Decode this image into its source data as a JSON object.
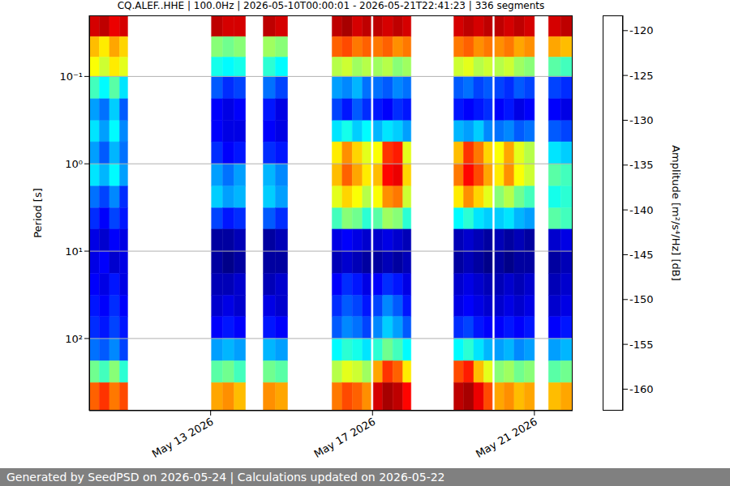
{
  "chart_data": {
    "type": "heatmap",
    "title": "CQ.ALEF..HHE | 100.0Hz | 2026-05-10T00:00:01 - 2026-05-21T22:41:23 | 336 segments",
    "y_label": "Period [s]",
    "xlim": [
      10.0,
      21.945
    ],
    "xticks": [
      {
        "value": 13,
        "label": "May 13 2026"
      },
      {
        "value": 17,
        "label": "May 17 2026"
      },
      {
        "value": 21,
        "label": "May 21 2026"
      }
    ],
    "ylim": [
      0.02,
      670
    ],
    "yticks": [
      {
        "value": 0.1,
        "label": "10⁻¹"
      },
      {
        "value": 1,
        "label": "10⁰"
      },
      {
        "value": 10,
        "label": "10¹"
      },
      {
        "value": 100,
        "label": "10²"
      }
    ],
    "log": "y",
    "grid": true,
    "tick_labels": true,
    "heatmap": {
      "x_edges": [
        10.0,
        10.25,
        10.5,
        10.75,
        10.95,
        13.02,
        13.3,
        13.58,
        13.86,
        14.3,
        14.6,
        14.9,
        16.0,
        16.25,
        16.5,
        16.75,
        16.96,
        17.02,
        17.25,
        17.5,
        17.75,
        17.95,
        19.01,
        19.25,
        19.5,
        19.75,
        19.96,
        20.02,
        20.25,
        20.5,
        20.75,
        21.0,
        21.35,
        21.65,
        21.945
      ],
      "y_edges": [
        0.02,
        0.035,
        0.06,
        0.1,
        0.18,
        0.32,
        0.56,
        1.0,
        1.8,
        3.2,
        5.6,
        10,
        18,
        32,
        56,
        100,
        180,
        320,
        670
      ],
      "values": [
        [
          -122,
          -121,
          -123,
          -122,
          null,
          -121,
          -122,
          -122,
          null,
          -121,
          -122,
          null,
          -121,
          -120,
          -122,
          -121,
          null,
          -121,
          -122,
          -121,
          -122,
          null,
          -122,
          -121,
          -122,
          -121,
          null,
          -121,
          -122,
          -121,
          -122,
          null,
          -122,
          -121
        ],
        [
          -132,
          -134,
          -131,
          -133,
          null,
          -140,
          -141,
          -140,
          null,
          -139,
          -140,
          null,
          -128,
          -127,
          -129,
          -128,
          null,
          -129,
          -128,
          -130,
          -129,
          null,
          -129,
          -128,
          -130,
          -129,
          null,
          -130,
          -129,
          -131,
          -130,
          null,
          -131,
          -132
        ],
        [
          -135,
          -137,
          -134,
          -136,
          null,
          -145,
          -146,
          -145,
          null,
          -144,
          -146,
          null,
          -138,
          -137,
          -139,
          -138,
          null,
          -139,
          -138,
          -140,
          -139,
          null,
          -137,
          -136,
          -138,
          -137,
          null,
          -138,
          -137,
          -139,
          -140,
          null,
          -142,
          -143
        ],
        [
          -143,
          -146,
          -142,
          -147,
          null,
          -153,
          -155,
          -154,
          null,
          -152,
          -154,
          null,
          -150,
          -151,
          -149,
          -152,
          null,
          -152,
          -153,
          -151,
          -152,
          null,
          -153,
          -152,
          -154,
          -153,
          null,
          -154,
          -155,
          -153,
          -154,
          null,
          -154,
          -155
        ],
        [
          -150,
          -152,
          -148,
          -153,
          null,
          -157,
          -158,
          -157,
          null,
          -156,
          -158,
          null,
          -154,
          -156,
          -153,
          -155,
          null,
          -156,
          -157,
          -155,
          -156,
          null,
          -156,
          -157,
          -156,
          -155,
          null,
          -157,
          -156,
          -158,
          -157,
          null,
          -157,
          -158
        ],
        [
          -147,
          -150,
          -146,
          -151,
          null,
          -157,
          -158,
          -158,
          null,
          -157,
          -158,
          null,
          -147,
          -145,
          -148,
          -146,
          null,
          -149,
          -147,
          -148,
          -150,
          null,
          -149,
          -150,
          -148,
          -151,
          null,
          -152,
          -151,
          -153,
          -152,
          null,
          -153,
          -154
        ],
        [
          -150,
          -153,
          -149,
          -152,
          null,
          -155,
          -157,
          -156,
          null,
          -155,
          -156,
          null,
          -134,
          -130,
          -133,
          -136,
          null,
          -135,
          -126,
          -125,
          -136,
          null,
          -132,
          -126,
          -129,
          -133,
          null,
          -135,
          -131,
          -136,
          -138,
          null,
          -147,
          -148
        ],
        [
          -147,
          -149,
          -146,
          -150,
          null,
          -150,
          -152,
          -150,
          null,
          -149,
          -151,
          null,
          -132,
          -128,
          -131,
          -134,
          null,
          -132,
          -124,
          -123,
          -133,
          null,
          -129,
          -124,
          -127,
          -131,
          null,
          -134,
          -130,
          -135,
          -137,
          null,
          -142,
          -143
        ],
        [
          -152,
          -154,
          -151,
          -155,
          null,
          -148,
          -150,
          -149,
          null,
          -148,
          -150,
          null,
          -136,
          -133,
          -135,
          -138,
          null,
          -135,
          -130,
          -129,
          -137,
          null,
          -134,
          -130,
          -133,
          -136,
          null,
          -140,
          -138,
          -141,
          -143,
          null,
          -145,
          -144
        ],
        [
          -155,
          -157,
          -154,
          -156,
          null,
          -154,
          -156,
          -155,
          null,
          -153,
          -155,
          null,
          -143,
          -140,
          -141,
          -144,
          null,
          -142,
          -139,
          -140,
          -144,
          null,
          -146,
          -144,
          -147,
          -148,
          null,
          -148,
          -147,
          -149,
          -150,
          null,
          -142,
          -143
        ],
        [
          -158,
          -159,
          -157,
          -158,
          null,
          -161,
          -161,
          -160,
          null,
          -161,
          -160,
          null,
          -158,
          -157,
          -158,
          -159,
          null,
          -159,
          -158,
          -159,
          -160,
          null,
          -160,
          -159,
          -160,
          -161,
          null,
          -160,
          -161,
          -160,
          -161,
          null,
          -159,
          -158
        ],
        [
          -158,
          -157,
          -159,
          -158,
          null,
          -161,
          -162,
          -161,
          null,
          -161,
          -161,
          null,
          -160,
          -159,
          -160,
          -161,
          null,
          -161,
          -160,
          -161,
          -160,
          null,
          -161,
          -160,
          -161,
          -162,
          null,
          -161,
          -162,
          -161,
          -161,
          null,
          -161,
          -160
        ],
        [
          -157,
          -158,
          -156,
          -158,
          null,
          -160,
          -160,
          -159,
          null,
          -160,
          -159,
          null,
          -157,
          -155,
          -156,
          -158,
          null,
          -157,
          -155,
          -156,
          -158,
          null,
          -159,
          -158,
          -159,
          -160,
          null,
          -160,
          -159,
          -160,
          -159,
          null,
          -160,
          -159
        ],
        [
          -156,
          -157,
          -155,
          -157,
          null,
          -159,
          -158,
          -159,
          null,
          -158,
          -159,
          null,
          -155,
          -153,
          -154,
          -156,
          null,
          -154,
          -151,
          -153,
          -156,
          null,
          -158,
          -157,
          -158,
          -159,
          null,
          -159,
          -158,
          -159,
          -158,
          null,
          -159,
          -158
        ],
        [
          -155,
          -156,
          -154,
          -156,
          null,
          -157,
          -156,
          -157,
          null,
          -156,
          -157,
          null,
          -153,
          -151,
          -152,
          -154,
          null,
          -151,
          -148,
          -150,
          -153,
          null,
          -155,
          -154,
          -156,
          -157,
          null,
          -157,
          -156,
          -157,
          -156,
          null,
          -157,
          -156
        ],
        [
          -152,
          -153,
          -151,
          -154,
          null,
          -150,
          -149,
          -150,
          null,
          -149,
          -150,
          null,
          -146,
          -144,
          -145,
          -147,
          null,
          -144,
          -141,
          -143,
          -146,
          null,
          -146,
          -144,
          -147,
          -149,
          null,
          -150,
          -149,
          -151,
          -150,
          null,
          -150,
          -149
        ],
        [
          -141,
          -143,
          -140,
          -144,
          null,
          -142,
          -141,
          -143,
          null,
          -141,
          -142,
          null,
          -138,
          -136,
          -137,
          -139,
          null,
          -131,
          -126,
          -128,
          -134,
          null,
          -127,
          -125,
          -132,
          -136,
          null,
          -140,
          -139,
          -141,
          -140,
          null,
          -142,
          -141
        ],
        [
          -128,
          -126,
          -129,
          -127,
          null,
          -131,
          -130,
          -132,
          null,
          -130,
          -131,
          null,
          -129,
          -127,
          -128,
          -130,
          null,
          -122,
          -120,
          -121,
          -124,
          null,
          -121,
          -120,
          -123,
          -127,
          null,
          -131,
          -130,
          -132,
          -131,
          null,
          -132,
          -131
        ]
      ]
    },
    "colorbar": {
      "label": "Amplitude [m²/s⁴/Hz] [dB]",
      "lim": [
        -162.4,
        -118.3
      ],
      "ticks": [
        -160,
        -155,
        -150,
        -145,
        -140,
        -135,
        -130,
        -125,
        -120
      ]
    }
  },
  "footer": "Generated by SeedPSD on 2026-05-24 | Calculations updated on 2026-05-22"
}
